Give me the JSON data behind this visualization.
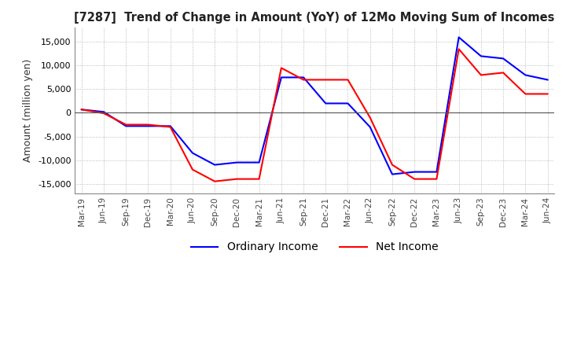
{
  "title": "[7287]  Trend of Change in Amount (YoY) of 12Mo Moving Sum of Incomes",
  "ylabel": "Amount (million yen)",
  "ylim": [
    -17000,
    18000
  ],
  "yticks": [
    -15000,
    -10000,
    -5000,
    0,
    5000,
    10000,
    15000
  ],
  "line_colors": {
    "ordinary": "#0000FF",
    "net": "#FF0000"
  },
  "legend_labels": [
    "Ordinary Income",
    "Net Income"
  ],
  "x_labels": [
    "Mar-19",
    "Jun-19",
    "Sep-19",
    "Dec-19",
    "Mar-20",
    "Jun-20",
    "Sep-20",
    "Dec-20",
    "Mar-21",
    "Jun-21",
    "Sep-21",
    "Dec-21",
    "Mar-22",
    "Jun-22",
    "Sep-22",
    "Dec-22",
    "Mar-23",
    "Jun-23",
    "Sep-23",
    "Dec-23",
    "Mar-24",
    "Jun-24"
  ],
  "ordinary_income": [
    700,
    200,
    -2800,
    -2800,
    -2800,
    -8500,
    -11000,
    -10500,
    -10500,
    7500,
    7500,
    2000,
    2000,
    -3000,
    -13000,
    -12500,
    -12500,
    16000,
    12000,
    11500,
    8000,
    7000
  ],
  "net_income": [
    700,
    -100,
    -2500,
    -2500,
    -3000,
    -12000,
    -14500,
    -14000,
    -14000,
    9500,
    7000,
    7000,
    7000,
    -1000,
    -11000,
    -14000,
    -14000,
    13500,
    8000,
    8500,
    4000,
    4000
  ],
  "background_color": "#ffffff",
  "grid_color": "#aaaaaa"
}
